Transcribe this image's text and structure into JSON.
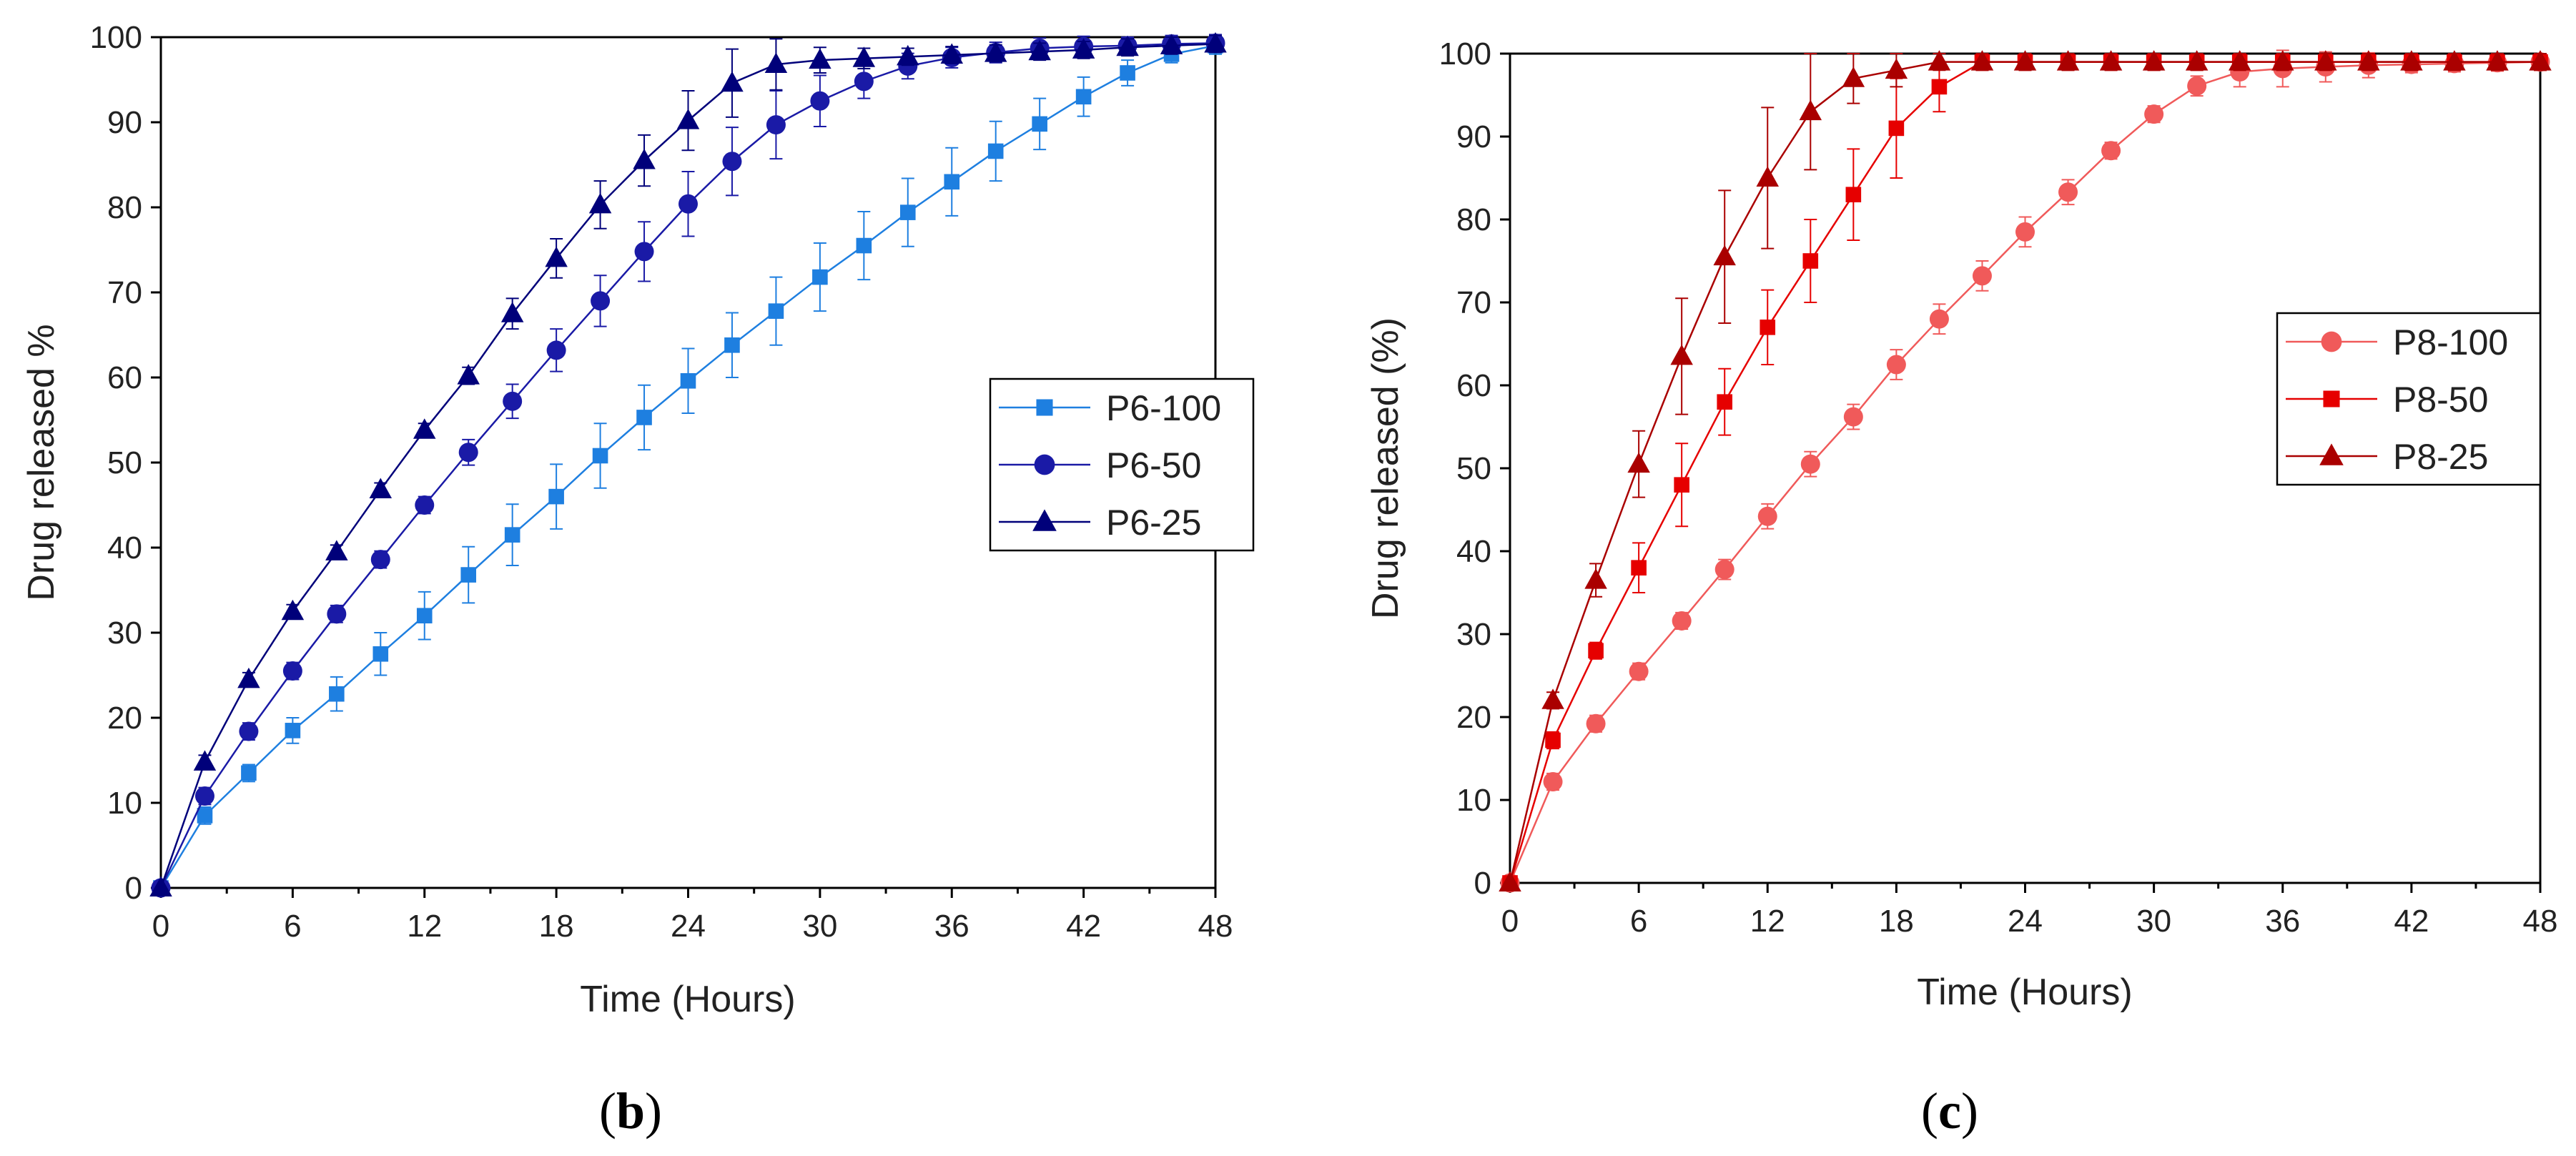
{
  "figure_labels": {
    "b": {
      "open": "(",
      "letter": "b",
      "close": ")"
    },
    "c": {
      "open": "(",
      "letter": "c",
      "close": ")"
    }
  },
  "chart_data": [
    {
      "id": "b",
      "type": "line",
      "xlabel": "Time (Hours)",
      "ylabel": "Drug released %",
      "xlim": [
        0,
        48
      ],
      "ylim": [
        0,
        100
      ],
      "xticks": [
        0,
        6,
        12,
        18,
        24,
        30,
        36,
        42,
        48
      ],
      "yticks": [
        0,
        10,
        20,
        30,
        40,
        50,
        60,
        70,
        80,
        90,
        100
      ],
      "legend_position": "middle-right",
      "series": [
        {
          "name": "P6-100",
          "marker": "square",
          "color": "#1E7FE0",
          "x": [
            0,
            2,
            4,
            6,
            8,
            10,
            12,
            14,
            16,
            18,
            20,
            22,
            24,
            26,
            28,
            30,
            32,
            34,
            36,
            38,
            40,
            42,
            44,
            46,
            48
          ],
          "y": [
            0,
            8.5,
            13.5,
            18.5,
            22.8,
            27.5,
            32,
            36.8,
            41.5,
            46,
            50.8,
            55.3,
            59.6,
            63.8,
            67.8,
            71.8,
            75.5,
            79.4,
            83,
            86.6,
            89.8,
            93,
            95.8,
            98,
            99
          ],
          "err": [
            0,
            1,
            1,
            1.5,
            2,
            2.5,
            2.8,
            3.3,
            3.6,
            3.8,
            3.8,
            3.8,
            3.8,
            3.8,
            4,
            4,
            4,
            4,
            4,
            3.5,
            3,
            2.3,
            1.5,
            1,
            1
          ]
        },
        {
          "name": "P6-50",
          "marker": "circle",
          "color": "#1A1AA6",
          "x": [
            0,
            2,
            4,
            6,
            8,
            10,
            12,
            14,
            16,
            18,
            20,
            22,
            24,
            26,
            28,
            30,
            32,
            34,
            36,
            38,
            40,
            42,
            44,
            46,
            48
          ],
          "y": [
            0,
            10.8,
            18.4,
            25.5,
            32.2,
            38.6,
            45,
            51.2,
            57.2,
            63.2,
            69,
            74.8,
            80.4,
            85.4,
            89.7,
            92.5,
            94.8,
            96.6,
            97.6,
            98.2,
            98.7,
            98.9,
            99,
            99.2,
            99.3
          ],
          "err": [
            0,
            1,
            1,
            1,
            1,
            1,
            1,
            1.5,
            2,
            2.5,
            3,
            3.5,
            3.8,
            4,
            4,
            3,
            2,
            1.5,
            1.2,
            1.2,
            1.2,
            1.2,
            1,
            1,
            1
          ]
        },
        {
          "name": "P6-25",
          "marker": "triangle",
          "color": "#00007A",
          "x": [
            0,
            2,
            4,
            6,
            8,
            10,
            12,
            14,
            16,
            18,
            20,
            22,
            24,
            26,
            28,
            30,
            32,
            34,
            36,
            38,
            40,
            42,
            44,
            46,
            48
          ],
          "y": [
            0,
            14.8,
            24.5,
            32.5,
            39.5,
            46.8,
            53.8,
            60.2,
            67.5,
            74,
            80.3,
            85.5,
            90.2,
            94.6,
            96.8,
            97.3,
            97.5,
            97.7,
            97.9,
            98.1,
            98.3,
            98.5,
            98.8,
            99,
            99.2
          ],
          "err": [
            0,
            0.8,
            0.8,
            0.8,
            0.8,
            0.8,
            0.8,
            1,
            1.8,
            2.3,
            2.8,
            3,
            3.5,
            4,
            3,
            1.5,
            1.2,
            1,
            1,
            1,
            1,
            1,
            1,
            1,
            1
          ]
        }
      ]
    },
    {
      "id": "c",
      "type": "line",
      "xlabel": "Time (Hours)",
      "ylabel": "Drug released (%)",
      "xlim": [
        0,
        48
      ],
      "ylim": [
        0,
        100
      ],
      "xticks": [
        0,
        6,
        12,
        18,
        24,
        30,
        36,
        42,
        48
      ],
      "yticks": [
        0,
        10,
        20,
        30,
        40,
        50,
        60,
        70,
        80,
        90,
        100
      ],
      "legend_position": "upper-right",
      "series": [
        {
          "name": "P8-100",
          "marker": "circle",
          "color": "#F05A5A",
          "x": [
            0,
            2,
            4,
            6,
            8,
            10,
            12,
            14,
            16,
            18,
            20,
            22,
            24,
            26,
            28,
            30,
            32,
            34,
            36,
            38,
            40,
            42,
            44,
            46,
            48
          ],
          "y": [
            0,
            12.2,
            19.2,
            25.5,
            31.6,
            37.8,
            44.2,
            50.5,
            56.2,
            62.5,
            68,
            73.2,
            78.5,
            83.3,
            88.3,
            92.7,
            96.1,
            97.8,
            98.2,
            98.4,
            98.6,
            98.7,
            98.8,
            98.9,
            99
          ],
          "err": [
            0,
            1,
            1,
            1,
            1,
            1.2,
            1.5,
            1.5,
            1.5,
            1.8,
            1.8,
            1.8,
            1.8,
            1.5,
            1,
            1,
            1.2,
            1.8,
            2.2,
            1.8,
            1.5,
            1,
            1,
            1,
            1
          ]
        },
        {
          "name": "P8-50",
          "marker": "square",
          "color": "#E60000",
          "x": [
            0,
            2,
            4,
            6,
            8,
            10,
            12,
            14,
            16,
            18,
            20,
            22,
            24,
            26,
            28,
            30,
            32,
            34,
            36,
            38,
            40,
            42,
            44,
            46,
            48
          ],
          "y": [
            0,
            17.2,
            28,
            38,
            48,
            58,
            67,
            75,
            83,
            91,
            96,
            99,
            99,
            99,
            99,
            99,
            99,
            99,
            99,
            99,
            99,
            99,
            99,
            99,
            99
          ],
          "err": [
            0,
            1,
            1,
            3,
            5,
            4,
            4.5,
            5,
            5.5,
            6,
            3,
            1,
            1,
            1,
            1,
            1,
            1,
            1,
            1,
            1,
            1,
            1,
            1,
            1,
            1
          ]
        },
        {
          "name": "P8-25",
          "marker": "triangle",
          "color": "#AA0000",
          "x": [
            0,
            2,
            4,
            6,
            8,
            10,
            12,
            14,
            16,
            18,
            20,
            22,
            24,
            26,
            28,
            30,
            32,
            34,
            36,
            38,
            40,
            42,
            44,
            46,
            48
          ],
          "y": [
            0,
            22,
            36.5,
            50.5,
            63.5,
            75.5,
            85,
            93,
            97,
            98,
            99,
            99,
            99,
            99,
            99,
            99,
            99,
            99,
            99,
            99,
            99,
            99,
            99,
            99,
            99
          ],
          "err": [
            0,
            1,
            2,
            4,
            7,
            8,
            8.5,
            7,
            3,
            2,
            1,
            1,
            1,
            1,
            1,
            1,
            1,
            1,
            1,
            1,
            1,
            1,
            1,
            1,
            1
          ]
        }
      ]
    }
  ]
}
